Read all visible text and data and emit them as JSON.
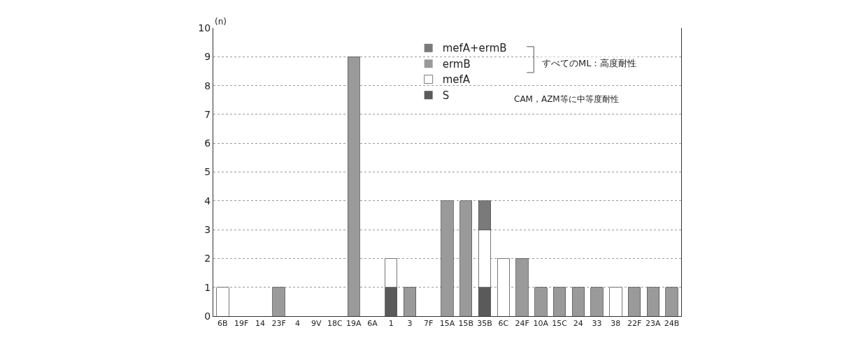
{
  "chart_data": {
    "type": "bar",
    "stacked": true,
    "ylabel": "(n)",
    "categories": [
      "6B",
      "19F",
      "14",
      "23F",
      "4",
      "9V",
      "18C",
      "19A",
      "6A",
      "1",
      "3",
      "7F",
      "15A",
      "15B",
      "35B",
      "6C",
      "24F",
      "10A",
      "15C",
      "24",
      "33",
      "38",
      "22F",
      "23A",
      "24B"
    ],
    "series": [
      {
        "name": "S",
        "color": "#5a5a5a",
        "values": [
          0,
          0,
          0,
          0,
          0,
          0,
          0,
          0,
          0,
          1,
          0,
          0,
          0,
          0,
          1,
          0,
          0,
          0,
          0,
          0,
          0,
          0,
          0,
          0,
          0
        ]
      },
      {
        "name": "mefA",
        "color": "#ffffff",
        "values": [
          1,
          0,
          0,
          0,
          0,
          0,
          0,
          0,
          0,
          1,
          0,
          0,
          0,
          0,
          2,
          2,
          0,
          0,
          0,
          0,
          0,
          1,
          0,
          0,
          0
        ]
      },
      {
        "name": "ermB",
        "color": "#9a9a9a",
        "values": [
          0,
          0,
          0,
          1,
          0,
          0,
          0,
          9,
          0,
          0,
          1,
          0,
          4,
          4,
          0,
          0,
          2,
          1,
          1,
          1,
          1,
          0,
          1,
          1,
          1
        ]
      },
      {
        "name": "mefA+ermB",
        "color": "#7a7a7a",
        "values": [
          0,
          0,
          0,
          0,
          0,
          0,
          0,
          0,
          0,
          0,
          0,
          0,
          0,
          0,
          1,
          0,
          0,
          0,
          0,
          0,
          0,
          0,
          0,
          0,
          0
        ]
      }
    ],
    "ylim": [
      0,
      10
    ],
    "yticks": [
      0,
      1,
      2,
      3,
      4,
      5,
      6,
      7,
      8,
      9,
      10
    ],
    "grid": "y",
    "legend": "top right",
    "annotations": [
      "すべてのML：高度耐性",
      "CAM，AZM等に中等度耐性"
    ]
  }
}
